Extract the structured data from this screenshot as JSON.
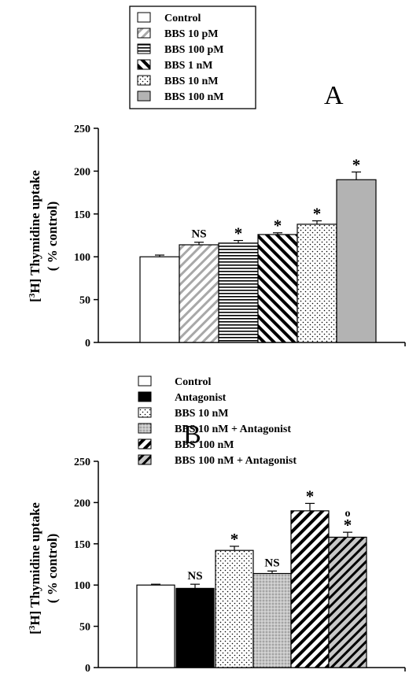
{
  "chart_data": [
    {
      "type": "bar",
      "panel_label": "A",
      "ylabel": "[3H] Thymidine uptake ( % control)",
      "ylim": [
        0,
        250
      ],
      "yticks": [
        0,
        50,
        100,
        150,
        200,
        250
      ],
      "legend_position": "top-left",
      "categories": [
        "Control",
        "BBS 10 pM",
        "BBS 100 pM",
        "BBS 1 nM",
        "BBS 10 nM",
        "BBS 100 nM"
      ],
      "values": [
        100,
        114,
        116,
        126,
        138,
        190
      ],
      "errors": [
        2,
        3,
        3,
        2,
        4,
        9
      ],
      "annotations": [
        "",
        "NS",
        "*",
        "*",
        "*",
        "*"
      ],
      "patterns": [
        "white",
        "diag-light-gray",
        "horizontal",
        "diag-back",
        "dots",
        "solid-gray"
      ]
    },
    {
      "type": "bar",
      "panel_label": "B",
      "ylabel": "[3H] Thymidine uptake ( % control)",
      "ylim": [
        0,
        250
      ],
      "yticks": [
        0,
        50,
        100,
        150,
        200,
        250
      ],
      "legend_position": "top-left",
      "categories": [
        "Control",
        "Antagonist",
        "BBS 10 nM",
        "BBS 10 nM + Antagonist",
        "BBS 100 nM",
        "BBS 100 nM + Antagonist"
      ],
      "values": [
        100,
        96,
        142,
        114,
        190,
        158
      ],
      "errors": [
        1,
        5,
        5,
        3,
        9,
        6
      ],
      "annotations": [
        "",
        "NS",
        "*",
        "NS",
        "*",
        "*"
      ],
      "secondary_annotations": [
        "",
        "",
        "",
        "",
        "",
        "o"
      ],
      "patterns": [
        "white",
        "black",
        "dots",
        "gray-dots",
        "diag-fwd",
        "diag-fwd-gray"
      ]
    }
  ]
}
